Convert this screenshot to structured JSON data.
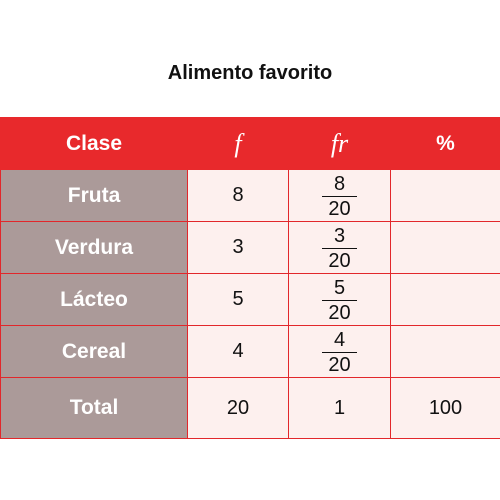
{
  "title": "Alimento favorito",
  "headers": [
    "Clase",
    "f",
    "fr",
    "%"
  ],
  "rows": [
    {
      "clase": "Fruta",
      "f": "8",
      "fr_num": "8",
      "fr_den": "20",
      "pct": ""
    },
    {
      "clase": "Verdura",
      "f": "3",
      "fr_num": "3",
      "fr_den": "20",
      "pct": ""
    },
    {
      "clase": "Lácteo",
      "f": "5",
      "fr_num": "5",
      "fr_den": "20",
      "pct": ""
    },
    {
      "clase": "Cereal",
      "f": "4",
      "fr_num": "4",
      "fr_den": "20",
      "pct": ""
    }
  ],
  "total": {
    "label": "Total",
    "f": "20",
    "fr": "1",
    "pct": "100"
  },
  "colors": {
    "header_bg": "#e8292c",
    "label_bg": "#ab9a99",
    "cell_bg": "#fdf0ee",
    "border": "#e2272b"
  }
}
